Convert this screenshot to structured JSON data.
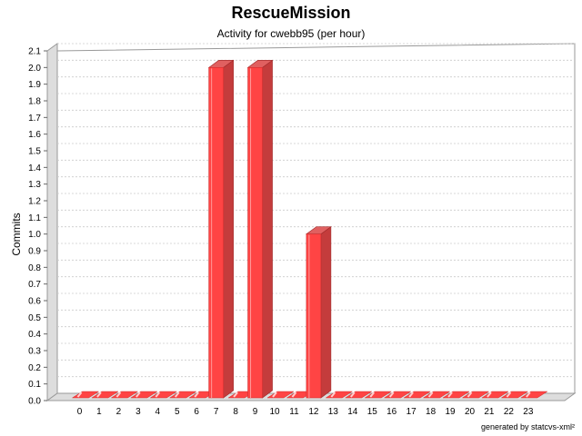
{
  "chart_data": {
    "type": "bar",
    "title": "RescueMission",
    "subtitle": "Activity for cwebb95 (per hour)",
    "xlabel": "",
    "ylabel": "Commits",
    "categories": [
      "0",
      "1",
      "2",
      "3",
      "4",
      "5",
      "6",
      "7",
      "8",
      "9",
      "10",
      "11",
      "12",
      "13",
      "14",
      "15",
      "16",
      "17",
      "18",
      "19",
      "20",
      "21",
      "22",
      "23"
    ],
    "series": [
      {
        "values": [
          0,
          0,
          0,
          0,
          0,
          0,
          0,
          2,
          0,
          2,
          0,
          0,
          1,
          0,
          0,
          0,
          0,
          0,
          0,
          0,
          0,
          0,
          0,
          0
        ]
      }
    ],
    "ylim": [
      0,
      2.1
    ],
    "yticks": [
      "0.0",
      "0.1",
      "0.2",
      "0.3",
      "0.4",
      "0.5",
      "0.6",
      "0.7",
      "0.8",
      "0.9",
      "1.0",
      "1.1",
      "1.2",
      "1.3",
      "1.4",
      "1.5",
      "1.6",
      "1.7",
      "1.8",
      "1.9",
      "2.0",
      "2.1"
    ],
    "grid": true,
    "bar_color": "#ff4444"
  },
  "footer": "generated by statcvs-xml²"
}
